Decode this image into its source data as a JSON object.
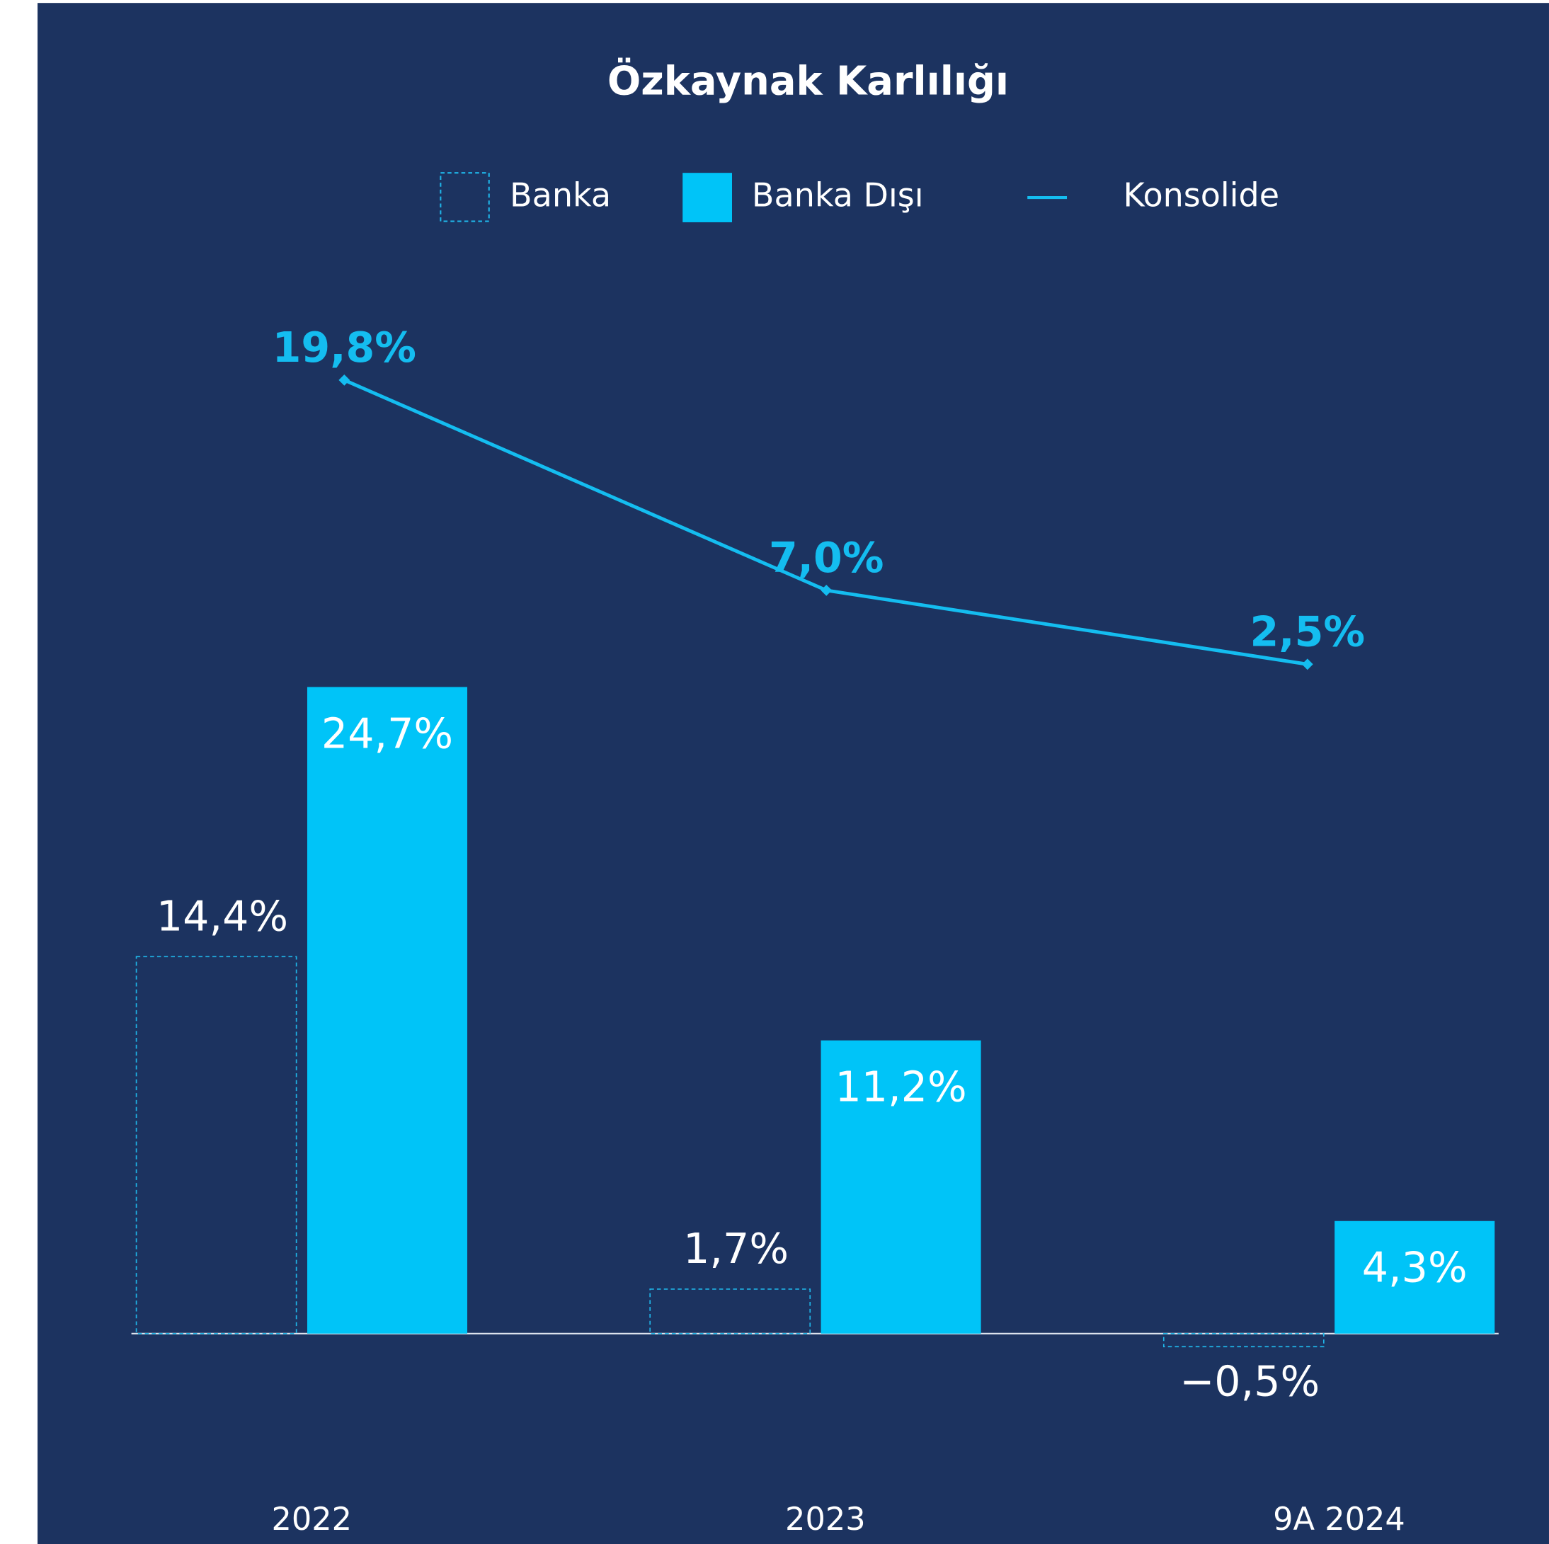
{
  "chart_data": {
    "type": "bar",
    "title": "Özkaynak Karlılığı",
    "categories": [
      "2022",
      "2023",
      "9A 2024"
    ],
    "series": [
      {
        "name": "Banka",
        "color": "#1fb5e8",
        "values": [
          14.4,
          1.7,
          -0.5
        ],
        "value_labels": [
          "14,4%",
          "1,7%",
          "−0,5%"
        ]
      },
      {
        "name": "Banka Dışı",
        "color": "#00c4f8",
        "values": [
          24.7,
          11.2,
          4.3
        ],
        "value_labels": [
          "24,7%",
          "11,2%",
          "4,3%"
        ]
      },
      {
        "name": "Konsolide",
        "type": "line",
        "axis": "y2",
        "color": "#14bdf0",
        "values": [
          19.8,
          7.0,
          2.5
        ],
        "value_labels": [
          "19,8%",
          "7,0%",
          "2,5%"
        ]
      }
    ],
    "ylim": [
      -8,
      40
    ],
    "y2lim": [
      -51,
      25.5
    ]
  }
}
